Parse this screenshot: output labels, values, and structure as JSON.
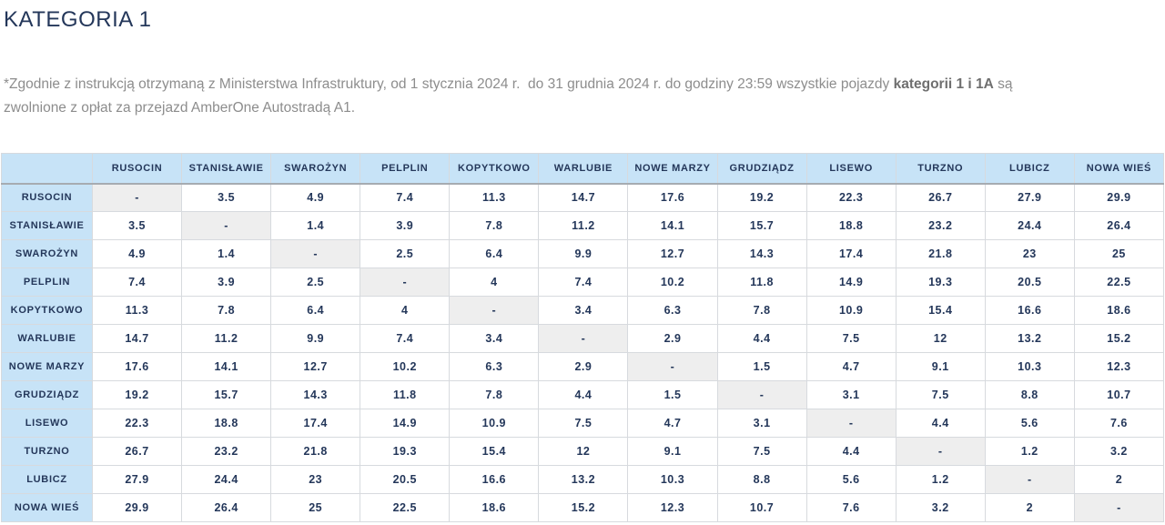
{
  "page": {
    "title": "KATEGORIA 1",
    "note": {
      "part1": "*Zgodnie z instrukcją otrzymaną z Ministerstwa Infrastruktury, od 1 stycznia 2024 r.  do 31 grudnia 2024 r. do godziny 23:59 wszystkie pojazdy ",
      "bold": "kategorii 1 i 1A",
      "part2": " są zwolnione z opłat za przejazd AmberOne Autostradą A1."
    }
  },
  "colors": {
    "header_blue": "#c7e3f7",
    "text_navy": "#24375a",
    "diagonal_gray": "#eeeeee",
    "note_gray": "#8d8d8d"
  },
  "table": {
    "corner_label": "",
    "empty_value": "-",
    "stations": [
      "RUSOCIN",
      "STANISŁAWIE",
      "SWAROŻYN",
      "PELPLIN",
      "KOPYTKOWO",
      "WARLUBIE",
      "NOWE MARZY",
      "GRUDZIĄDZ",
      "LISEWO",
      "TURZNO",
      "LUBICZ",
      "NOWA WIEŚ"
    ],
    "matrix": [
      [
        "-",
        "3.5",
        "4.9",
        "7.4",
        "11.3",
        "14.7",
        "17.6",
        "19.2",
        "22.3",
        "26.7",
        "27.9",
        "29.9"
      ],
      [
        "3.5",
        "-",
        "1.4",
        "3.9",
        "7.8",
        "11.2",
        "14.1",
        "15.7",
        "18.8",
        "23.2",
        "24.4",
        "26.4"
      ],
      [
        "4.9",
        "1.4",
        "-",
        "2.5",
        "6.4",
        "9.9",
        "12.7",
        "14.3",
        "17.4",
        "21.8",
        "23",
        "25"
      ],
      [
        "7.4",
        "3.9",
        "2.5",
        "-",
        "4",
        "7.4",
        "10.2",
        "11.8",
        "14.9",
        "19.3",
        "20.5",
        "22.5"
      ],
      [
        "11.3",
        "7.8",
        "6.4",
        "4",
        "-",
        "3.4",
        "6.3",
        "7.8",
        "10.9",
        "15.4",
        "16.6",
        "18.6"
      ],
      [
        "14.7",
        "11.2",
        "9.9",
        "7.4",
        "3.4",
        "-",
        "2.9",
        "4.4",
        "7.5",
        "12",
        "13.2",
        "15.2"
      ],
      [
        "17.6",
        "14.1",
        "12.7",
        "10.2",
        "6.3",
        "2.9",
        "-",
        "1.5",
        "4.7",
        "9.1",
        "10.3",
        "12.3"
      ],
      [
        "19.2",
        "15.7",
        "14.3",
        "11.8",
        "7.8",
        "4.4",
        "1.5",
        "-",
        "3.1",
        "7.5",
        "8.8",
        "10.7"
      ],
      [
        "22.3",
        "18.8",
        "17.4",
        "14.9",
        "10.9",
        "7.5",
        "4.7",
        "3.1",
        "-",
        "4.4",
        "5.6",
        "7.6"
      ],
      [
        "26.7",
        "23.2",
        "21.8",
        "19.3",
        "15.4",
        "12",
        "9.1",
        "7.5",
        "4.4",
        "-",
        "1.2",
        "3.2"
      ],
      [
        "27.9",
        "24.4",
        "23",
        "20.5",
        "16.6",
        "13.2",
        "10.3",
        "8.8",
        "5.6",
        "1.2",
        "-",
        "2"
      ],
      [
        "29.9",
        "26.4",
        "25",
        "22.5",
        "18.6",
        "15.2",
        "12.3",
        "10.7",
        "7.6",
        "3.2",
        "2",
        "-"
      ]
    ]
  }
}
